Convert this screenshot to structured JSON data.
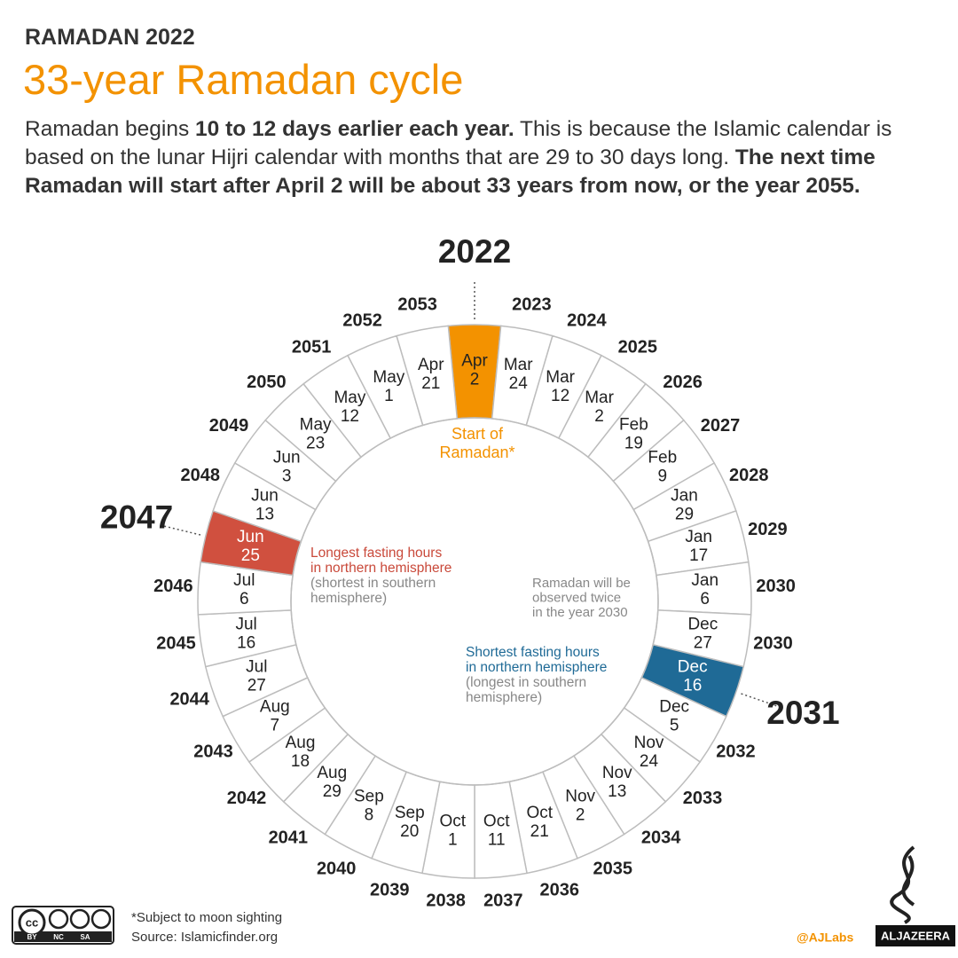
{
  "header": {
    "kicker": "RAMADAN 2022",
    "title": "33-year Ramadan cycle",
    "intro": [
      "Ramadan begins ",
      "10 to 12 days earlier each year.",
      " This is because the Islamic calendar is based on the lunar Hijri calendar with months that are 29 to 30 days long. ",
      "The next time Ramadan will start after April 2 will be about 33 years from now, or the year 2055."
    ]
  },
  "segments": [
    {
      "year": "2022",
      "date": [
        "Apr",
        "2"
      ],
      "color": "#f39200"
    },
    {
      "year": "2023",
      "date": [
        "Mar",
        "24"
      ]
    },
    {
      "year": "2024",
      "date": [
        "Mar",
        "12"
      ]
    },
    {
      "year": "2025",
      "date": [
        "Mar",
        "2"
      ]
    },
    {
      "year": "2026",
      "date": [
        "Feb",
        "19"
      ]
    },
    {
      "year": "2027",
      "date": [
        "Feb",
        "9"
      ]
    },
    {
      "year": "2028",
      "date": [
        "Jan",
        "29"
      ]
    },
    {
      "year": "2029",
      "date": [
        "Jan",
        "17"
      ]
    },
    {
      "year": "2030",
      "date": [
        "Jan",
        "6"
      ]
    },
    {
      "year": "2030",
      "date": [
        "Dec",
        "27"
      ]
    },
    {
      "year": "2031",
      "date": [
        "Dec",
        "16"
      ],
      "color": "#1f6a96"
    },
    {
      "year": "2032",
      "date": [
        "Dec",
        "5"
      ]
    },
    {
      "year": "2033",
      "date": [
        "Nov",
        "24"
      ]
    },
    {
      "year": "2034",
      "date": [
        "Nov",
        "13"
      ]
    },
    {
      "year": "2035",
      "date": [
        "Nov",
        "2"
      ]
    },
    {
      "year": "2036",
      "date": [
        "Oct",
        "21"
      ]
    },
    {
      "year": "2037",
      "date": [
        "Oct",
        "11"
      ]
    },
    {
      "year": "2038",
      "date": [
        "Oct",
        "1"
      ]
    },
    {
      "year": "2039",
      "date": [
        "Sep",
        "20"
      ]
    },
    {
      "year": "2040",
      "date": [
        "Sep",
        "8"
      ]
    },
    {
      "year": "2041",
      "date": [
        "Aug",
        "29"
      ]
    },
    {
      "year": "2042",
      "date": [
        "Aug",
        "18"
      ]
    },
    {
      "year": "2043",
      "date": [
        "Aug",
        "7"
      ]
    },
    {
      "year": "2044",
      "date": [
        "Jul",
        "27"
      ]
    },
    {
      "year": "2045",
      "date": [
        "Jul",
        "16"
      ]
    },
    {
      "year": "2046",
      "date": [
        "Jul",
        "6"
      ]
    },
    {
      "year": "2047",
      "date": [
        "Jun",
        "25"
      ],
      "color": "#d0503f"
    },
    {
      "year": "2048",
      "date": [
        "Jun",
        "13"
      ]
    },
    {
      "year": "2049",
      "date": [
        "Jun",
        "3"
      ]
    },
    {
      "year": "2050",
      "date": [
        "May",
        "23"
      ]
    },
    {
      "year": "2051",
      "date": [
        "May",
        "12"
      ]
    },
    {
      "year": "2052",
      "date": [
        "May",
        "1"
      ]
    },
    {
      "year": "2053",
      "date": [
        "Apr",
        "21"
      ]
    }
  ],
  "annotations": {
    "start": [
      "Start of",
      "Ramadan*"
    ],
    "longest": [
      "Longest fasting hours",
      "in northern hemisphere"
    ],
    "longest_note": [
      "(shortest in southern",
      "hemisphere)"
    ],
    "twice": [
      "Ramadan will be",
      "observed twice",
      "in the year 2030"
    ],
    "shortest": [
      "Shortest fasting hours",
      "in northern hemisphere"
    ],
    "shortest_note": [
      "(longest in southern",
      "hemisphere)"
    ]
  },
  "footer": {
    "note": "*Subject to moon sighting",
    "source": "Source: Islamicfinder.org",
    "handle": "@AJLabs",
    "brand": "ALJAZEERA",
    "license": [
      "BY",
      "NC",
      "SA"
    ]
  }
}
